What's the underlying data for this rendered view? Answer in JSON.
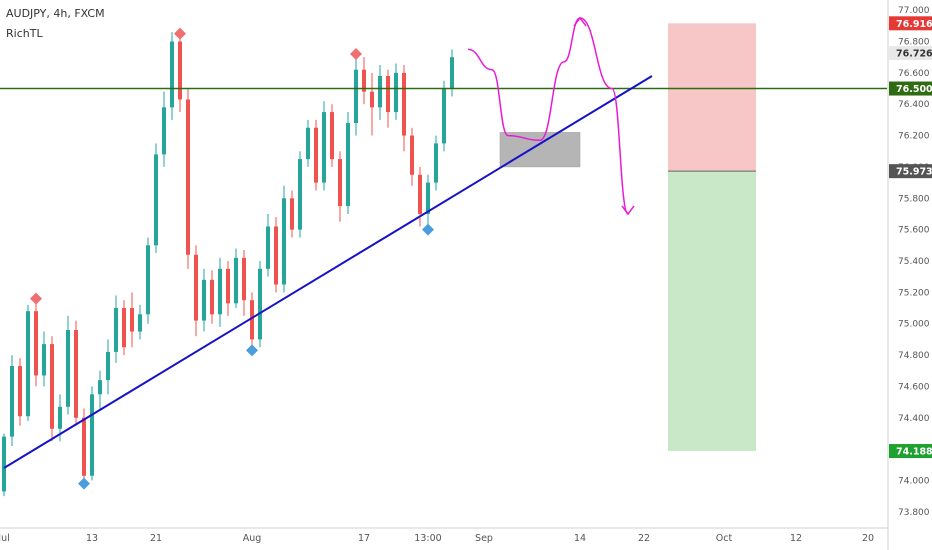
{
  "header": {
    "symbol_line": "AUDJPY, 4h, FXCM",
    "indicator": "RichTL"
  },
  "colors": {
    "up": "#26a69a",
    "down": "#ef5350",
    "trendline": "#1512c8",
    "horizontal": "#2e6b12",
    "drawing": "#e81ad8",
    "zone": "#b5b5b5",
    "stop_zone": "#f7c7c7",
    "target_zone": "#c8e8c8",
    "pivot_high": "#ef7070",
    "pivot_low": "#4a9ee0"
  },
  "chart_data": {
    "type": "candlestick",
    "y_range": [
      73.78,
      77.02
    ],
    "y_ticks": [
      "77.000",
      "76.800",
      "76.600",
      "76.400",
      "76.200",
      "76.000",
      "75.800",
      "75.600",
      "75.400",
      "75.200",
      "75.000",
      "74.800",
      "74.600",
      "74.400",
      "74.200",
      "74.000",
      "73.800"
    ],
    "x_ticks": [
      "Jul",
      "13",
      "21",
      "Aug",
      "17",
      "13:00",
      "Sep",
      "14",
      "22",
      "Oct",
      "12",
      "20"
    ],
    "price_labels": [
      {
        "text": "76.916",
        "value": 76.916,
        "bg": "#e53935",
        "fg": "#ffffff"
      },
      {
        "text": "76.726",
        "value": 76.726,
        "bg": "#e8e8e8",
        "fg": "#333333"
      },
      {
        "text": "76.500",
        "value": 76.5,
        "bg": "#2e6b12",
        "fg": "#ffffff"
      },
      {
        "text": "75.973",
        "value": 75.973,
        "bg": "#555555",
        "fg": "#ffffff"
      },
      {
        "text": "74.188",
        "value": 74.188,
        "bg": "#1fa12f",
        "fg": "#ffffff"
      }
    ],
    "horizontal_line": 76.5,
    "trendline": [
      [
        0,
        74.08
      ],
      [
        81,
        76.58
      ]
    ],
    "zone_rect": {
      "x0": 62,
      "x1": 72,
      "y0": 76.22,
      "y1": 76.0
    },
    "position": {
      "x0": 83,
      "x1": 94,
      "entry": 75.973,
      "stop": 76.916,
      "target": 74.188
    },
    "pivots": [
      {
        "type": "high",
        "x": 4,
        "y": 75.16
      },
      {
        "type": "low",
        "x": 10,
        "y": 73.98
      },
      {
        "type": "high",
        "x": 22,
        "y": 76.85
      },
      {
        "type": "low",
        "x": 31,
        "y": 74.83
      },
      {
        "type": "high",
        "x": 44,
        "y": 76.72
      },
      {
        "type": "low",
        "x": 53,
        "y": 75.6
      }
    ],
    "projection": [
      [
        58,
        76.75
      ],
      [
        61,
        76.62
      ],
      [
        63,
        76.2
      ],
      [
        67,
        76.17
      ],
      [
        70,
        76.67
      ],
      [
        72,
        76.95
      ],
      [
        76,
        76.5
      ],
      [
        78,
        75.7
      ]
    ],
    "candles": [
      [
        73.93,
        74.28,
        73.9,
        74.3
      ],
      [
        74.28,
        74.73,
        74.22,
        74.8
      ],
      [
        74.73,
        74.41,
        74.35,
        74.78
      ],
      [
        74.41,
        75.08,
        74.38,
        75.12
      ],
      [
        75.08,
        74.67,
        74.6,
        75.13
      ],
      [
        74.67,
        74.87,
        74.6,
        74.95
      ],
      [
        74.87,
        74.33,
        74.25,
        74.92
      ],
      [
        74.33,
        74.47,
        74.25,
        74.55
      ],
      [
        74.47,
        74.96,
        74.42,
        75.05
      ],
      [
        74.96,
        74.4,
        74.35,
        75.02
      ],
      [
        74.4,
        74.03,
        73.98,
        74.46
      ],
      [
        74.03,
        74.55,
        74.0,
        74.6
      ],
      [
        74.55,
        74.64,
        74.45,
        74.7
      ],
      [
        74.64,
        74.82,
        74.55,
        74.9
      ],
      [
        74.82,
        75.1,
        74.75,
        75.18
      ],
      [
        75.1,
        74.85,
        74.8,
        75.15
      ],
      [
        75.1,
        74.95,
        74.85,
        75.2
      ],
      [
        74.95,
        75.06,
        74.9,
        75.12
      ],
      [
        75.06,
        75.5,
        75.0,
        75.55
      ],
      [
        75.5,
        76.08,
        75.45,
        76.15
      ],
      [
        76.08,
        76.38,
        76.0,
        76.48
      ],
      [
        76.38,
        76.8,
        76.3,
        76.86
      ],
      [
        76.8,
        76.43,
        76.35,
        76.85
      ],
      [
        76.43,
        75.44,
        75.35,
        76.5
      ],
      [
        75.44,
        75.02,
        74.92,
        75.5
      ],
      [
        75.02,
        75.28,
        74.95,
        75.35
      ],
      [
        75.28,
        75.06,
        75.0,
        75.34
      ],
      [
        75.06,
        75.35,
        74.98,
        75.42
      ],
      [
        75.35,
        75.13,
        75.05,
        75.4
      ],
      [
        75.13,
        75.42,
        75.1,
        75.48
      ],
      [
        75.42,
        75.15,
        75.05,
        75.47
      ],
      [
        75.15,
        74.9,
        74.83,
        75.2
      ],
      [
        74.9,
        75.35,
        74.85,
        75.4
      ],
      [
        75.35,
        75.62,
        75.3,
        75.7
      ],
      [
        75.62,
        75.25,
        75.2,
        75.68
      ],
      [
        75.25,
        75.8,
        75.2,
        75.88
      ],
      [
        75.8,
        75.6,
        75.55,
        75.85
      ],
      [
        75.6,
        76.05,
        75.55,
        76.1
      ],
      [
        76.05,
        76.25,
        76.0,
        76.3
      ],
      [
        76.25,
        75.9,
        75.85,
        76.3
      ],
      [
        75.9,
        76.35,
        75.85,
        76.42
      ],
      [
        76.35,
        76.05,
        76.0,
        76.4
      ],
      [
        76.05,
        75.75,
        75.65,
        76.1
      ],
      [
        75.75,
        76.28,
        75.7,
        76.35
      ],
      [
        76.28,
        76.62,
        76.2,
        76.72
      ],
      [
        76.62,
        76.48,
        76.4,
        76.7
      ],
      [
        76.48,
        76.38,
        76.2,
        76.6
      ],
      [
        76.38,
        76.58,
        76.3,
        76.65
      ],
      [
        76.58,
        76.35,
        76.25,
        76.62
      ],
      [
        76.35,
        76.6,
        76.3,
        76.66
      ],
      [
        76.6,
        76.2,
        76.1,
        76.65
      ],
      [
        76.2,
        75.95,
        75.88,
        76.25
      ],
      [
        75.95,
        75.7,
        75.62,
        76.0
      ],
      [
        75.7,
        75.9,
        75.6,
        75.95
      ],
      [
        75.9,
        76.15,
        75.85,
        76.2
      ],
      [
        76.15,
        76.5,
        76.1,
        76.55
      ],
      [
        76.5,
        76.7,
        76.45,
        76.75
      ]
    ]
  }
}
